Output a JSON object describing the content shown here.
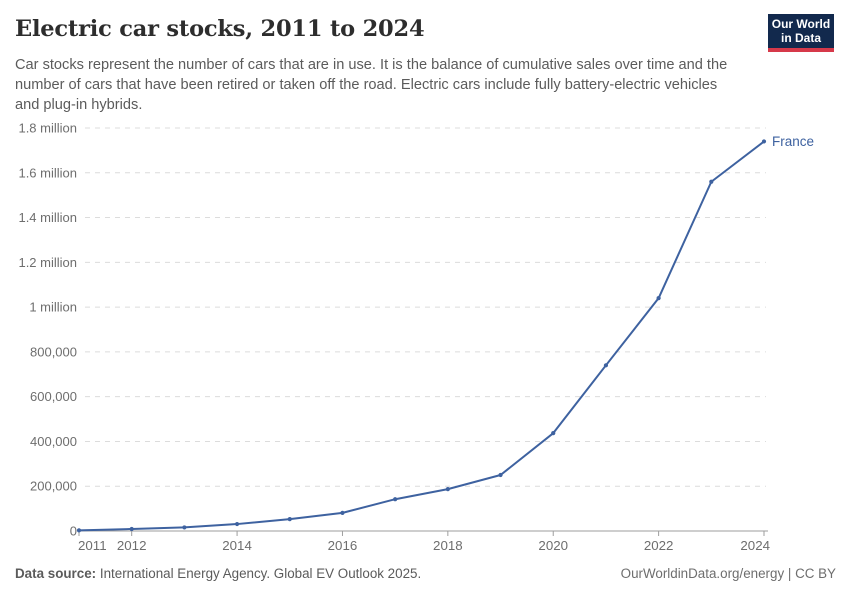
{
  "header": {
    "title": "Electric car stocks, 2011 to 2024",
    "subtitle_lines": [
      "Car stocks represent the number of cars that are in use. It is the balance of cumulative sales over time and the",
      "number of cars that have been retired or taken off the road. Electric cars include fully battery-electric vehicles",
      "and plug-in hybrids."
    ],
    "logo": {
      "line1": "Our World",
      "line2": "in Data",
      "bg": "#12294d",
      "accent": "#d6394a"
    }
  },
  "footer": {
    "source_label": "Data source:",
    "source_text": "International Energy Agency. Global EV Outlook 2025.",
    "credit": "OurWorldinData.org/energy | CC BY"
  },
  "chart_data": {
    "type": "line",
    "title": "Electric car stocks, 2011 to 2024",
    "xlabel": "",
    "ylabel": "",
    "grid": "horizontal-dashed",
    "legend_position": "end-of-line",
    "xlim": [
      2011,
      2024
    ],
    "ylim": [
      0,
      1800000
    ],
    "xticks": [
      2011,
      2012,
      2014,
      2016,
      2018,
      2020,
      2022,
      2024
    ],
    "yticks": [
      {
        "value": 0,
        "label": "0"
      },
      {
        "value": 200000,
        "label": "200,000"
      },
      {
        "value": 400000,
        "label": "400,000"
      },
      {
        "value": 600000,
        "label": "600,000"
      },
      {
        "value": 800000,
        "label": "800,000"
      },
      {
        "value": 1000000,
        "label": "1 million"
      },
      {
        "value": 1200000,
        "label": "1.2 million"
      },
      {
        "value": 1400000,
        "label": "1.4 million"
      },
      {
        "value": 1600000,
        "label": "1.6 million"
      },
      {
        "value": 1800000,
        "label": "1.8 million"
      }
    ],
    "series": [
      {
        "name": "France",
        "color": "#3e62a0",
        "x": [
          2011,
          2012,
          2013,
          2014,
          2015,
          2016,
          2017,
          2018,
          2019,
          2020,
          2021,
          2022,
          2023,
          2024
        ],
        "values": [
          3000,
          9000,
          16000,
          31000,
          53000,
          81000,
          142000,
          187000,
          250000,
          437000,
          740000,
          1040000,
          1560000,
          1740000
        ]
      }
    ],
    "axis_colors": {
      "axis": "#9e9e9e",
      "grid": "#dcdcdc",
      "tick_text": "#6e6e6e"
    }
  }
}
